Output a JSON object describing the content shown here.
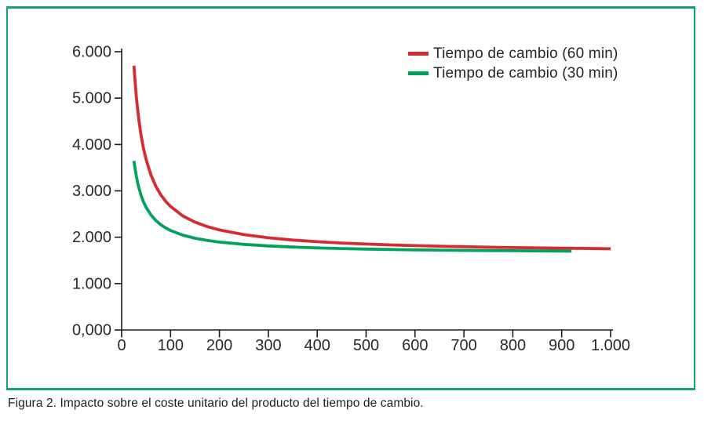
{
  "figure": {
    "caption": "Figura 2. Impacto sobre el coste unitario del producto del tiempo de cambio."
  },
  "colors": {
    "frame_border": "#14a07e",
    "axis": "#1c1c1c",
    "tick_label": "#2a2a2a",
    "series_60min": "#d62b30",
    "series_30min": "#00a35c"
  },
  "chart_data": {
    "type": "line",
    "title": "",
    "xlabel": "",
    "ylabel": "",
    "xlim": [
      0,
      1000
    ],
    "ylim": [
      0,
      6000
    ],
    "grid": false,
    "x_ticks": {
      "values": [
        0,
        100,
        200,
        300,
        400,
        500,
        600,
        700,
        800,
        900,
        1000
      ],
      "labels": [
        "0",
        "100",
        "200",
        "300",
        "400",
        "500",
        "600",
        "700",
        "800",
        "900",
        "1.000"
      ]
    },
    "y_ticks": {
      "values": [
        0,
        1000,
        2000,
        3000,
        4000,
        5000,
        6000
      ],
      "labels": [
        "0,000",
        "1.000",
        "2.000",
        "3.000",
        "4.000",
        "5.000",
        "6.000"
      ]
    },
    "legend": {
      "position": "top-right",
      "entries": [
        {
          "label": "Tiempo de cambio (60 min)",
          "color": "#d62b30"
        },
        {
          "label": "Tiempo de cambio (30 min)",
          "color": "#00a35c"
        }
      ]
    },
    "series": [
      {
        "name": "Tiempo de cambio (60 min)",
        "color": "#d62b30",
        "points": [
          [
            25,
            5700
          ],
          [
            30,
            5025
          ],
          [
            35,
            4543
          ],
          [
            40,
            4181
          ],
          [
            45,
            3900
          ],
          [
            50,
            3675
          ],
          [
            60,
            3338
          ],
          [
            70,
            3096
          ],
          [
            80,
            2916
          ],
          [
            90,
            2775
          ],
          [
            100,
            2663
          ],
          [
            125,
            2460
          ],
          [
            150,
            2325
          ],
          [
            175,
            2229
          ],
          [
            200,
            2156
          ],
          [
            250,
            2055
          ],
          [
            300,
            1988
          ],
          [
            350,
            1939
          ],
          [
            400,
            1903
          ],
          [
            450,
            1875
          ],
          [
            500,
            1853
          ],
          [
            550,
            1834
          ],
          [
            600,
            1819
          ],
          [
            650,
            1806
          ],
          [
            700,
            1795
          ],
          [
            750,
            1785
          ],
          [
            800,
            1777
          ],
          [
            850,
            1769
          ],
          [
            900,
            1763
          ],
          [
            950,
            1757
          ],
          [
            1000,
            1751
          ]
        ]
      },
      {
        "name": "Tiempo de cambio (30 min)",
        "color": "#00a35c",
        "points": [
          [
            25,
            3645
          ],
          [
            30,
            3312
          ],
          [
            35,
            3074
          ],
          [
            40,
            2895
          ],
          [
            45,
            2756
          ],
          [
            50,
            2645
          ],
          [
            60,
            2478
          ],
          [
            70,
            2359
          ],
          [
            80,
            2270
          ],
          [
            90,
            2201
          ],
          [
            100,
            2145
          ],
          [
            125,
            2045
          ],
          [
            150,
            1978
          ],
          [
            175,
            1931
          ],
          [
            200,
            1895
          ],
          [
            250,
            1845
          ],
          [
            300,
            1812
          ],
          [
            350,
            1788
          ],
          [
            400,
            1770
          ],
          [
            450,
            1756
          ],
          [
            500,
            1745
          ],
          [
            550,
            1736
          ],
          [
            600,
            1728
          ],
          [
            650,
            1722
          ],
          [
            700,
            1716
          ],
          [
            750,
            1712
          ],
          [
            800,
            1708
          ],
          [
            850,
            1704
          ],
          [
            900,
            1701
          ],
          [
            920,
            1699
          ]
        ]
      }
    ]
  }
}
